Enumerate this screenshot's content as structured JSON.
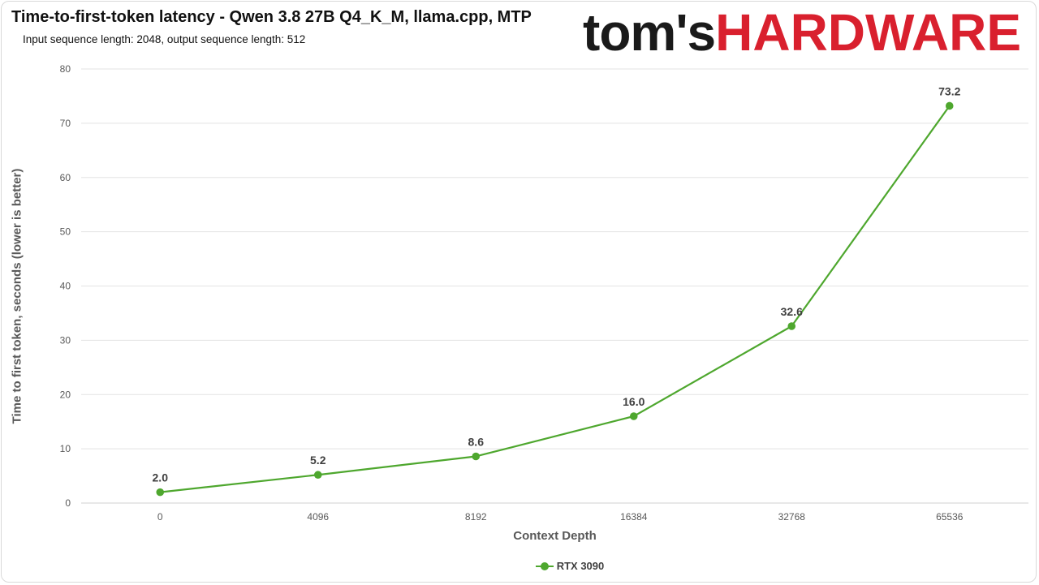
{
  "chart_data": {
    "type": "line",
    "title": "Time-to-first-token latency - Qwen 3.8 27B Q4_K_M, llama.cpp, MTP",
    "subtitle": "Input sequence length: 2048, output sequence length: 512",
    "xlabel": "Context Depth",
    "ylabel": "Time to first token, seconds (lower is better)",
    "categories": [
      "0",
      "4096",
      "8192",
      "16384",
      "32768",
      "65536"
    ],
    "yticks": [
      0,
      10,
      20,
      30,
      40,
      50,
      60,
      70,
      80
    ],
    "ylim": [
      0,
      80
    ],
    "grid": true,
    "legend_position": "bottom",
    "series": [
      {
        "name": "RTX 3090",
        "color": "#4ea72e",
        "values": [
          2.0,
          5.2,
          8.6,
          16.0,
          32.6,
          73.2
        ],
        "labels": [
          "2.0",
          "5.2",
          "8.6",
          "16.0",
          "32.6",
          "73.2"
        ]
      }
    ]
  },
  "logo": {
    "part1": "tom's",
    "part2": "HARDWARE"
  }
}
